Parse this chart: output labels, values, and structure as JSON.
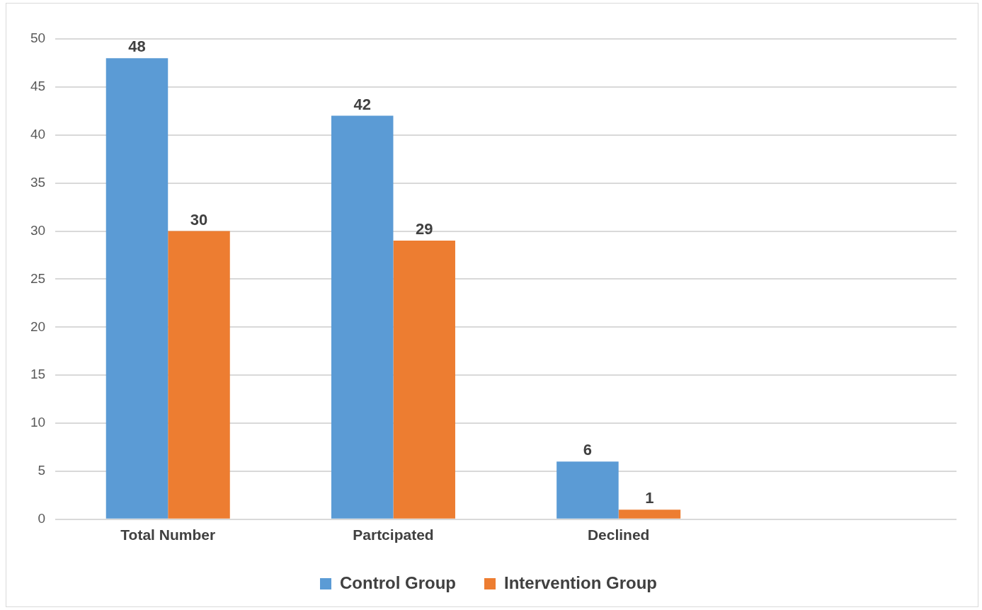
{
  "chart_data": {
    "type": "bar",
    "categories": [
      "Total Number",
      "Partcipated",
      "Declined",
      null
    ],
    "series": [
      {
        "name": "Control Group",
        "color": "#5b9bd5",
        "values": [
          48,
          42,
          6,
          null
        ]
      },
      {
        "name": "Intervention Group",
        "color": "#ed7d31",
        "values": [
          30,
          29,
          1,
          null
        ]
      }
    ],
    "ylim": [
      0,
      50
    ],
    "yticks": [
      0,
      5,
      10,
      15,
      20,
      25,
      30,
      35,
      40,
      45,
      50
    ],
    "grid": "y",
    "legend": "bottom",
    "data_labels": true
  }
}
